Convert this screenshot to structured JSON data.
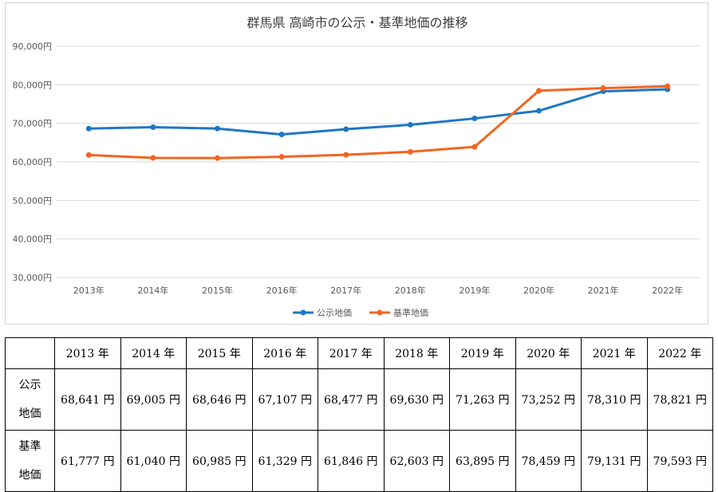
{
  "chart_data": {
    "type": "line",
    "title": "群馬県 高崎市の公示・基準地価の推移",
    "categories": [
      "2013年",
      "2014年",
      "2015年",
      "2016年",
      "2017年",
      "2018年",
      "2019年",
      "2020年",
      "2021年",
      "2022年"
    ],
    "series": [
      {
        "name": "公示地価",
        "color": "#1f77c4",
        "values": [
          68641,
          69005,
          68646,
          67107,
          68477,
          69630,
          71263,
          73252,
          78310,
          78821
        ]
      },
      {
        "name": "基準地価",
        "color": "#f26522",
        "values": [
          61777,
          61040,
          60985,
          61329,
          61846,
          62603,
          63895,
          78459,
          79131,
          79593
        ]
      }
    ],
    "ylim": [
      30000,
      90000
    ],
    "yticks": [
      30000,
      40000,
      50000,
      60000,
      70000,
      80000,
      90000
    ],
    "ytick_labels": [
      "30,000円",
      "40,000円",
      "50,000円",
      "60,000円",
      "70,000円",
      "80,000円",
      "90,000円"
    ],
    "grid": true,
    "legend_position": "bottom"
  },
  "table": {
    "headers": [
      "",
      "2013 年",
      "2014 年",
      "2015 年",
      "2016 年",
      "2017 年",
      "2018 年",
      "2019 年",
      "2020 年",
      "2021 年",
      "2022 年"
    ],
    "rows": [
      {
        "label": "公示\n地価",
        "cells": [
          "68,641 円",
          "69,005 円",
          "68,646 円",
          "67,107 円",
          "68,477 円",
          "69,630 円",
          "71,263 円",
          "73,252 円",
          "78,310 円",
          "78,821 円"
        ]
      },
      {
        "label": "基準\n地価",
        "cells": [
          "61,777 円",
          "61,040 円",
          "60,985 円",
          "61,329 円",
          "61,846 円",
          "62,603 円",
          "63,895 円",
          "78,459 円",
          "79,131 円",
          "79,593 円"
        ]
      }
    ]
  }
}
